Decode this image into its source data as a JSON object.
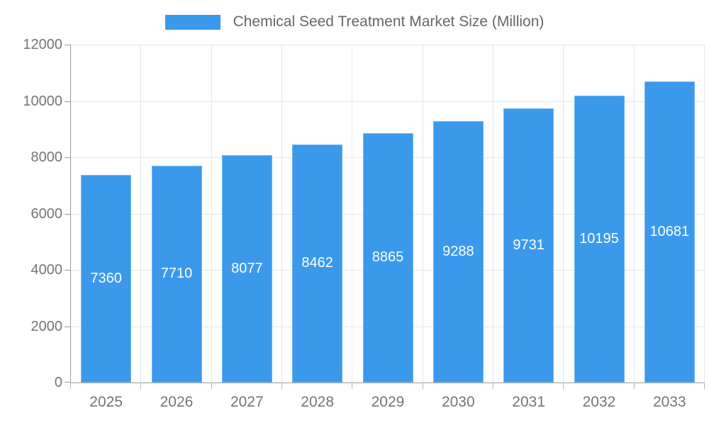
{
  "chart_data": {
    "type": "bar",
    "title": "Chemical Seed Treatment Market Size (Million)",
    "categories": [
      "2025",
      "2026",
      "2027",
      "2028",
      "2029",
      "2030",
      "2031",
      "2032",
      "2033"
    ],
    "values": [
      7360,
      7710,
      8077,
      8462,
      8865,
      9288,
      9731,
      10195,
      10681
    ],
    "xlabel": "",
    "ylabel": "",
    "ylim": [
      0,
      12000
    ],
    "y_ticks": [
      0,
      2000,
      4000,
      6000,
      8000,
      10000,
      12000
    ],
    "grid": "on",
    "legend_position": "top-center",
    "value_labels": "inside-middle"
  },
  "colors": {
    "bar_fill": "#3b99ec",
    "bar_edge": "#8cc4f2",
    "value_label": "#ffffff",
    "grid_line": "#e6e6e6",
    "axis_line": "#9a9a9a",
    "tick_label": "#757575",
    "legend_text": "#666666",
    "background": "#ffffff"
  }
}
